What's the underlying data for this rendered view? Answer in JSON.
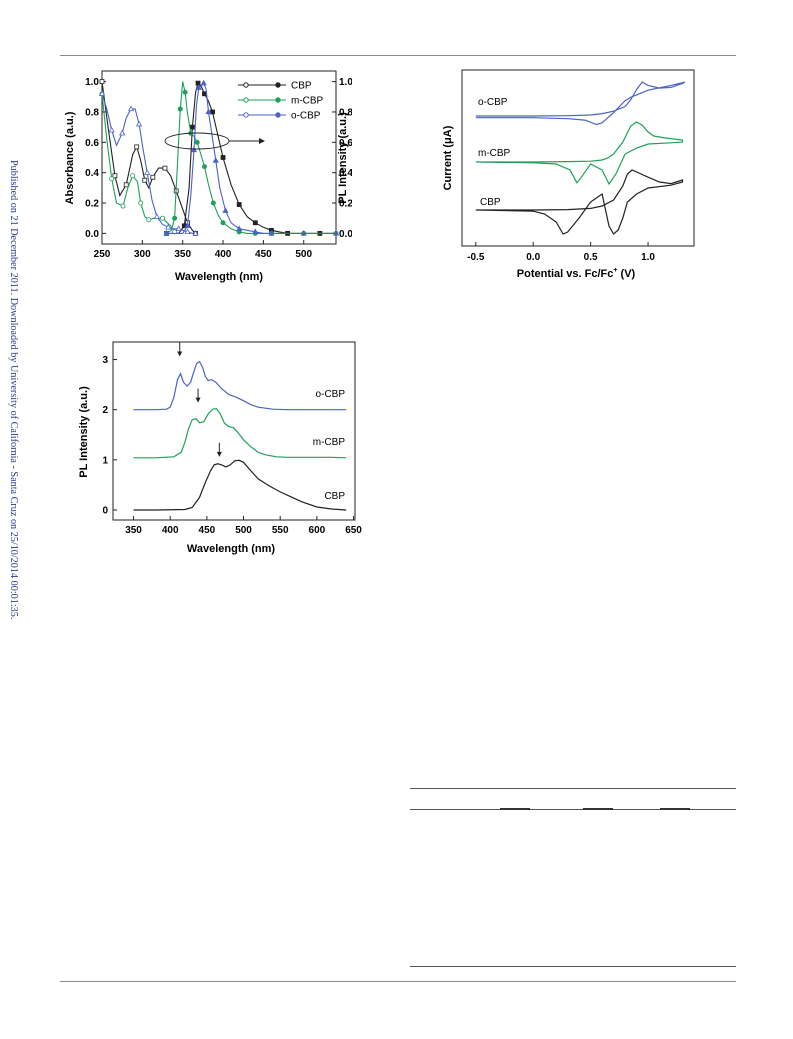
{
  "sidebar_note": "Published on 21 December 2011. Downloaded by University of California - Santa Cruz on 25/10/2014 00:01:35.",
  "figures": [
    {
      "id": "absorbance-pl",
      "chart_data": {
        "type": "line",
        "xlabel": "Wavelength (nm)",
        "ylabel": "Absorbance (a.u.)",
        "y2label": "PL Intensity (a.u.)",
        "xlim": [
          250,
          540
        ],
        "ylim": [
          -0.07,
          1.07
        ],
        "xticks": [
          250,
          300,
          350,
          400,
          450,
          500
        ],
        "yticks": [
          "0.0",
          "0.2",
          "0.4",
          "0.6",
          "0.8",
          "1.0"
        ],
        "legend": [
          "CBP",
          "m-CBP",
          "o-CBP"
        ],
        "colors": {
          "CBP": "#222222",
          "m-CBP": "#1fa05a",
          "o-CBP": "#4a62c9"
        },
        "series": [
          {
            "name": "CBP",
            "kind": "absorbance",
            "x": [
              250,
              258,
              266,
              272,
              280,
              288,
              293,
              298,
              303,
              308,
              313,
              320,
              328,
              335,
              342,
              350,
              356,
              362,
              366
            ],
            "y": [
              1.0,
              0.68,
              0.38,
              0.25,
              0.32,
              0.52,
              0.57,
              0.48,
              0.35,
              0.3,
              0.37,
              0.43,
              0.43,
              0.38,
              0.28,
              0.16,
              0.07,
              0.02,
              0.0
            ]
          },
          {
            "name": "CBP",
            "kind": "pl",
            "x": [
              330,
              345,
              352,
              358,
              362,
              366,
              369,
              373,
              377,
              382,
              387,
              393,
              400,
              410,
              420,
              430,
              440,
              450,
              460,
              470,
              480,
              500,
              520,
              540
            ],
            "y": [
              0.0,
              0.0,
              0.05,
              0.3,
              0.7,
              0.93,
              0.99,
              0.97,
              0.92,
              0.87,
              0.8,
              0.66,
              0.5,
              0.32,
              0.19,
              0.11,
              0.07,
              0.04,
              0.02,
              0.01,
              0.0,
              0.0,
              0.0,
              0.0
            ]
          },
          {
            "name": "m-CBP",
            "kind": "absorbance",
            "x": [
              250,
              256,
              262,
              268,
              276,
              282,
              288,
              294,
              298,
              303,
              308,
              315,
              325,
              335,
              340,
              344
            ],
            "y": [
              0.92,
              0.62,
              0.36,
              0.2,
              0.18,
              0.3,
              0.38,
              0.34,
              0.2,
              0.11,
              0.09,
              0.1,
              0.1,
              0.05,
              0.01,
              0.0
            ]
          },
          {
            "name": "m-CBP",
            "kind": "pl",
            "x": [
              330,
              336,
              340,
              343,
              347,
              350,
              353,
              356,
              360,
              364,
              368,
              372,
              377,
              382,
              388,
              394,
              400,
              410,
              420,
              430,
              440,
              450,
              460,
              480,
              500,
              520,
              540
            ],
            "y": [
              0.0,
              0.02,
              0.1,
              0.4,
              0.82,
              1.0,
              0.93,
              0.79,
              0.66,
              0.64,
              0.6,
              0.53,
              0.44,
              0.32,
              0.2,
              0.12,
              0.07,
              0.03,
              0.01,
              0.0,
              0.0,
              0.0,
              0.0,
              0.0,
              0.0,
              0.0,
              0.0
            ]
          },
          {
            "name": "o-CBP",
            "kind": "absorbance",
            "x": [
              250,
              256,
              262,
              268,
              275,
              280,
              286,
              291,
              296,
              301,
              306,
              312,
              318,
              325,
              332,
              338,
              345,
              350,
              356,
              362,
              366
            ],
            "y": [
              0.92,
              0.82,
              0.68,
              0.58,
              0.66,
              0.76,
              0.82,
              0.82,
              0.72,
              0.55,
              0.4,
              0.22,
              0.11,
              0.06,
              0.04,
              0.03,
              0.03,
              0.02,
              0.01,
              0.0,
              0.0
            ]
          },
          {
            "name": "o-CBP",
            "kind": "pl",
            "x": [
              330,
              350,
              356,
              360,
              364,
              367,
              370,
              373,
              376,
              379,
              382,
              386,
              391,
              396,
              403,
              410,
              420,
              430,
              440,
              450,
              460,
              480,
              500,
              520,
              540
            ],
            "y": [
              0.0,
              0.0,
              0.05,
              0.25,
              0.55,
              0.84,
              0.96,
              0.97,
              0.99,
              0.95,
              0.8,
              0.66,
              0.48,
              0.3,
              0.15,
              0.07,
              0.03,
              0.02,
              0.01,
              0.0,
              0.0,
              0.0,
              0.0,
              0.0,
              0.0
            ]
          }
        ]
      }
    },
    {
      "id": "cyclic-voltammetry",
      "chart_data": {
        "type": "line",
        "xlabel": "Potential vs. Fc/Fc",
        "xlabel_sup": "+",
        "xlabel_unit": " (V)",
        "ylabel": "Current (μA)",
        "xlim": [
          -0.62,
          1.4
        ],
        "xticks": [
          "-0.5",
          "0.0",
          "0.5",
          "1.0"
        ],
        "series_labels": [
          "o-CBP",
          "m-CBP",
          "CBP"
        ],
        "colors": {
          "o-CBP": "#4a62c9",
          "m-CBP": "#1fa05a",
          "CBP": "#222222"
        },
        "series": [
          {
            "name": "o-CBP",
            "x": [
              -0.5,
              0.0,
              0.3,
              0.5,
              0.6,
              0.7,
              0.8,
              0.85,
              0.9,
              0.95,
              1.0,
              1.1,
              1.2,
              1.3,
              1.32,
              1.3,
              1.2,
              1.1,
              1.0,
              0.9,
              0.85,
              0.8,
              0.7,
              0.6,
              0.55,
              0.45,
              0.3,
              0.0,
              -0.5
            ],
            "y": [
              0.0,
              0.0,
              0.01,
              0.03,
              0.07,
              0.14,
              0.28,
              0.48,
              0.78,
              1.0,
              0.9,
              0.82,
              0.84,
              0.96,
              1.0,
              0.98,
              0.9,
              0.83,
              0.76,
              0.62,
              0.55,
              0.45,
              0.1,
              -0.2,
              -0.25,
              -0.12,
              -0.08,
              -0.05,
              -0.05
            ]
          },
          {
            "name": "m-CBP",
            "x": [
              -0.5,
              0.0,
              0.3,
              0.5,
              0.6,
              0.65,
              0.7,
              0.78,
              0.85,
              0.9,
              0.95,
              1.0,
              1.05,
              1.15,
              1.3,
              1.3,
              1.2,
              1.0,
              0.9,
              0.8,
              0.72,
              0.66,
              0.6,
              0.5,
              0.42,
              0.38,
              0.32,
              0.2,
              0.0,
              -0.5
            ],
            "y": [
              0.0,
              0.0,
              0.01,
              0.02,
              0.05,
              0.1,
              0.2,
              0.5,
              0.9,
              1.0,
              0.92,
              0.75,
              0.65,
              0.6,
              0.55,
              0.5,
              0.48,
              0.45,
              0.35,
              0.2,
              -0.3,
              -0.55,
              -0.2,
              -0.05,
              -0.38,
              -0.52,
              -0.2,
              -0.05,
              -0.02,
              0.0
            ]
          },
          {
            "name": "CBP",
            "x": [
              -0.5,
              0.0,
              0.3,
              0.5,
              0.6,
              0.7,
              0.78,
              0.82,
              0.86,
              0.9,
              1.0,
              1.1,
              1.2,
              1.3,
              1.3,
              1.2,
              1.0,
              0.9,
              0.82,
              0.78,
              0.74,
              0.7,
              0.66,
              0.6,
              0.5,
              0.4,
              0.3,
              0.26,
              0.2,
              0.1,
              0.0,
              -0.5
            ],
            "y": [
              0.0,
              0.0,
              0.01,
              0.04,
              0.1,
              0.25,
              0.6,
              0.9,
              1.0,
              0.95,
              0.82,
              0.7,
              0.66,
              0.75,
              0.7,
              0.62,
              0.55,
              0.4,
              0.2,
              -0.2,
              -0.5,
              -0.6,
              -0.4,
              0.4,
              0.2,
              -0.2,
              -0.55,
              -0.6,
              -0.3,
              -0.1,
              -0.03,
              0.0
            ]
          }
        ]
      }
    },
    {
      "id": "pl-spectra-stacked",
      "chart_data": {
        "type": "line",
        "xlabel": "Wavelength (nm)",
        "ylabel": "PL Intensity (a.u.)",
        "xlim": [
          322,
          652
        ],
        "ylim": [
          -0.2,
          3.35
        ],
        "xticks": [
          350,
          400,
          450,
          500,
          550,
          600,
          650
        ],
        "yticks": [
          "0",
          "1",
          "2",
          "3"
        ],
        "series_labels": [
          "o-CBP",
          "m-CBP",
          "CBP"
        ],
        "colors": {
          "o-CBP": "#4a62c9",
          "m-CBP": "#1fa05a",
          "CBP": "#222222"
        },
        "arrows_x": [
          413,
          438,
          467
        ],
        "series": [
          {
            "name": "o-CBP",
            "x": [
              350,
              380,
              395,
              400,
              405,
              410,
              414,
              418,
              423,
              428,
              432,
              436,
              440,
              444,
              448,
              452,
              456,
              462,
              470,
              480,
              490,
              500,
              510,
              520,
              540,
              560,
              580,
              600,
              620,
              640
            ],
            "y": [
              2.0,
              2.0,
              2.01,
              2.05,
              2.25,
              2.6,
              2.72,
              2.55,
              2.47,
              2.55,
              2.75,
              2.92,
              2.96,
              2.85,
              2.66,
              2.58,
              2.6,
              2.55,
              2.42,
              2.3,
              2.25,
              2.18,
              2.1,
              2.05,
              2.01,
              2.0,
              2.0,
              2.0,
              2.0,
              2.0
            ]
          },
          {
            "name": "m-CBP",
            "x": [
              350,
              380,
              405,
              415,
              420,
              425,
              430,
              435,
              440,
              446,
              452,
              458,
              463,
              468,
              474,
              480,
              486,
              492,
              500,
              510,
              520,
              530,
              545,
              560,
              580,
              600,
              620,
              640
            ],
            "y": [
              1.04,
              1.04,
              1.06,
              1.15,
              1.35,
              1.62,
              1.8,
              1.82,
              1.74,
              1.76,
              1.92,
              2.01,
              2.02,
              1.92,
              1.73,
              1.66,
              1.64,
              1.55,
              1.4,
              1.26,
              1.15,
              1.1,
              1.06,
              1.05,
              1.05,
              1.05,
              1.05,
              1.04
            ]
          },
          {
            "name": "CBP",
            "x": [
              350,
              380,
              420,
              430,
              440,
              448,
              455,
              460,
              465,
              470,
              476,
              482,
              488,
              494,
              500,
              510,
              520,
              535,
              550,
              565,
              580,
              600,
              620,
              640
            ],
            "y": [
              0.0,
              0.0,
              0.01,
              0.05,
              0.25,
              0.55,
              0.78,
              0.9,
              0.92,
              0.9,
              0.86,
              0.9,
              0.98,
              0.99,
              0.95,
              0.78,
              0.62,
              0.48,
              0.36,
              0.26,
              0.16,
              0.06,
              0.02,
              0.0
            ]
          }
        ]
      }
    }
  ]
}
